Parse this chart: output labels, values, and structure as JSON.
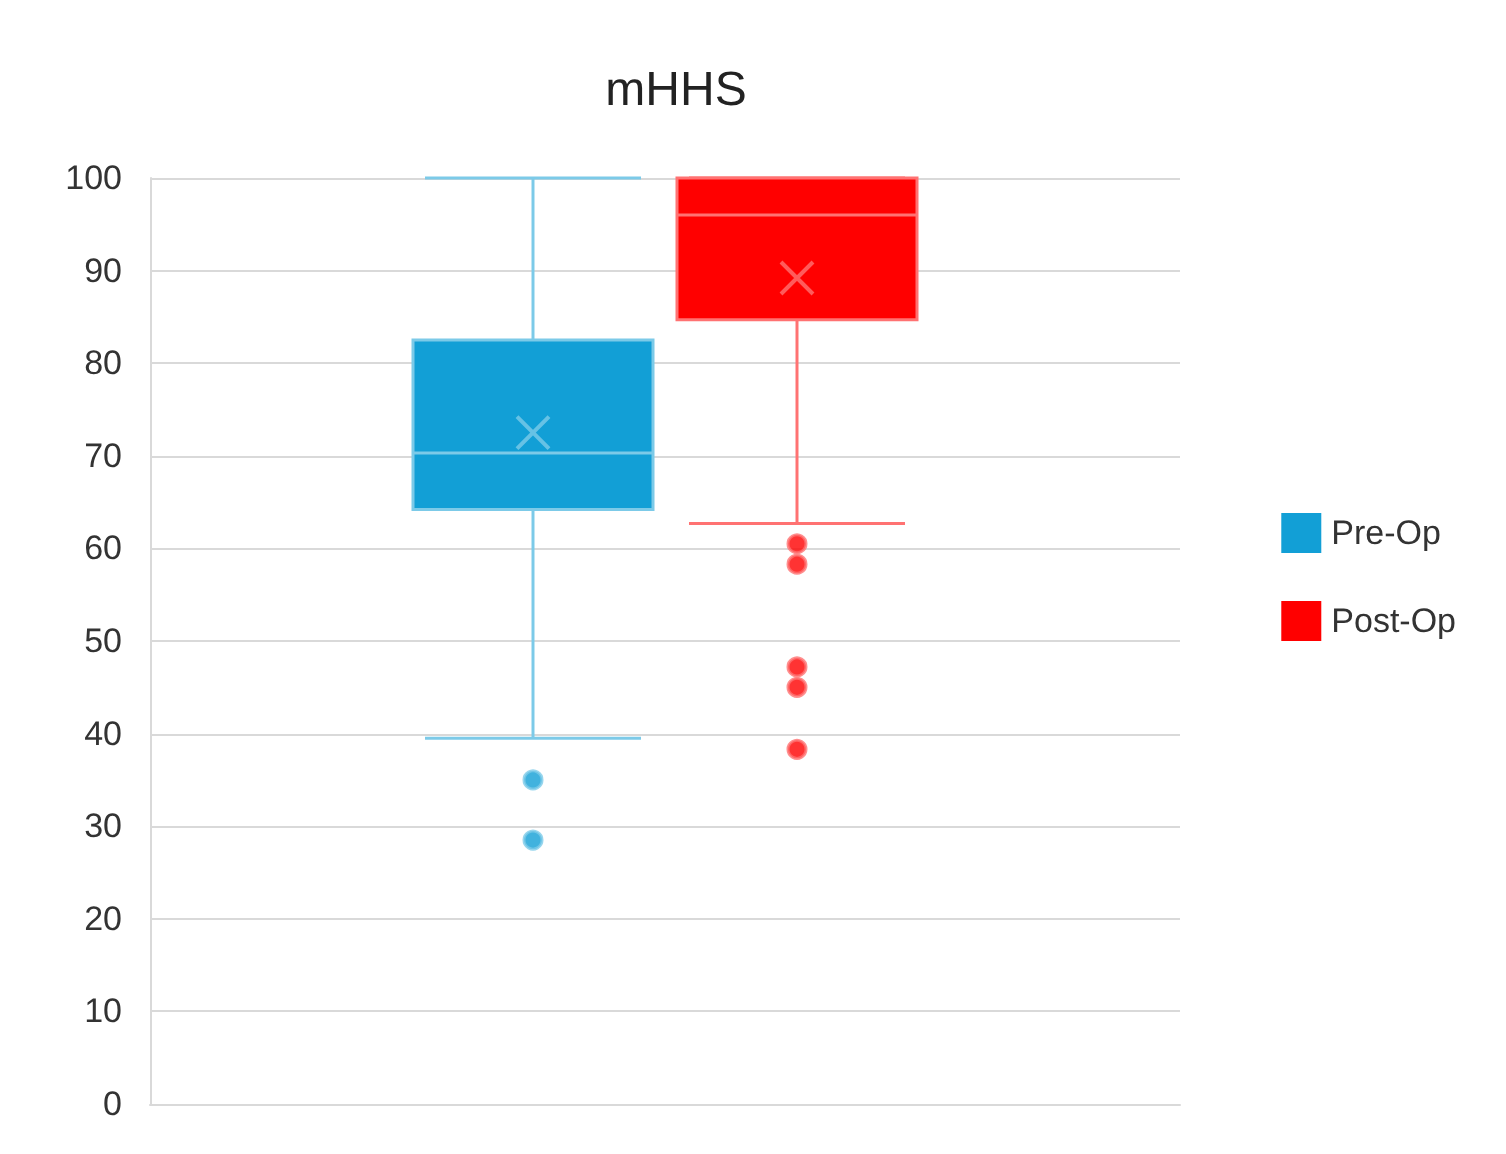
{
  "chart_data": {
    "type": "box",
    "title": "mHHS",
    "categories": [
      null
    ],
    "series": [
      {
        "name": "Pre-Op",
        "color": "#129fd6",
        "boxes": [
          {
            "low": 39.5,
            "q1": 64.2,
            "median": 70.3,
            "q3": 82.5,
            "high": 100,
            "mean": 72.5,
            "outliers": [
              35,
              28.5
            ]
          }
        ]
      },
      {
        "name": "Post-Op",
        "color": "#ff0000",
        "boxes": [
          {
            "low": 62.7,
            "q1": 84.7,
            "median": 96,
            "q3": 100,
            "high": 100,
            "mean": 89.2,
            "outliers": [
              60.5,
              58.3,
              47.2,
              45,
              38.3
            ]
          }
        ]
      }
    ],
    "ylim": [
      0,
      100
    ],
    "yticks": [
      0,
      10,
      20,
      30,
      40,
      50,
      60,
      70,
      80,
      90,
      100
    ],
    "grid": "y",
    "legend": "right"
  }
}
